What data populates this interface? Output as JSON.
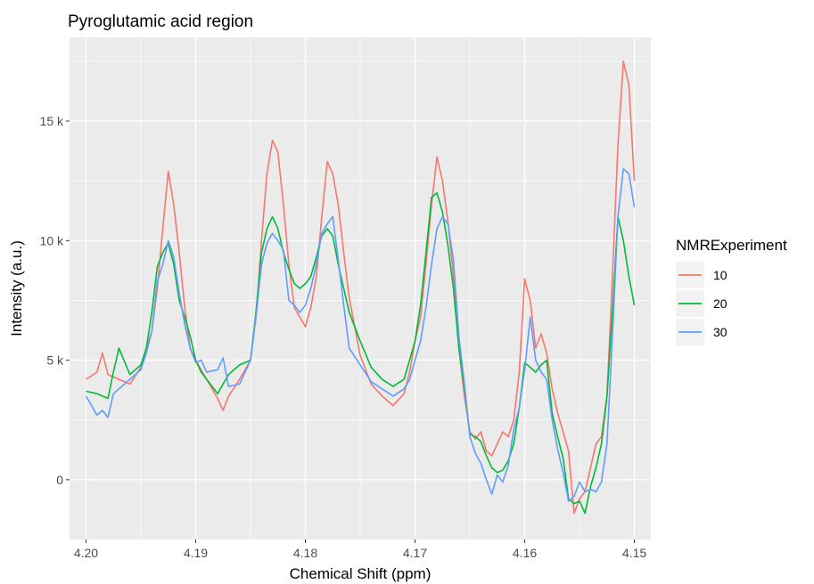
{
  "chart_data": {
    "type": "line",
    "title": "Pyroglutamic acid region",
    "xlabel": "Chemical Shift (ppm)",
    "ylabel": "Intensity (a.u.)",
    "x_reversed": true,
    "xlim": [
      4.2015,
      4.1485
    ],
    "ylim": [
      -2500,
      18500
    ],
    "x_ticks": [
      {
        "value": 4.2,
        "label": "4.20"
      },
      {
        "value": 4.19,
        "label": "4.19"
      },
      {
        "value": 4.18,
        "label": "4.18"
      },
      {
        "value": 4.17,
        "label": "4.17"
      },
      {
        "value": 4.16,
        "label": "4.16"
      },
      {
        "value": 4.15,
        "label": "4.15"
      }
    ],
    "y_ticks": [
      {
        "value": 0,
        "label": "0"
      },
      {
        "value": 5000,
        "label": "5 k"
      },
      {
        "value": 10000,
        "label": "10 k"
      },
      {
        "value": 15000,
        "label": "15 k"
      }
    ],
    "grid": true,
    "legend": {
      "title": "NMRExperiment",
      "position": "right"
    },
    "series": [
      {
        "name": "10",
        "color": "#F8766D",
        "x": [
          4.2,
          4.199,
          4.1985,
          4.198,
          4.1975,
          4.197,
          4.196,
          4.195,
          4.1945,
          4.194,
          4.1935,
          4.193,
          4.1925,
          4.192,
          4.1915,
          4.191,
          4.1905,
          4.19,
          4.1895,
          4.189,
          4.188,
          4.1875,
          4.187,
          4.186,
          4.185,
          4.1845,
          4.184,
          4.1835,
          4.183,
          4.1825,
          4.182,
          4.1815,
          4.181,
          4.1805,
          4.18,
          4.1795,
          4.179,
          4.1785,
          4.178,
          4.1775,
          4.177,
          4.1765,
          4.176,
          4.175,
          4.174,
          4.173,
          4.172,
          4.171,
          4.1705,
          4.17,
          4.1695,
          4.169,
          4.1685,
          4.168,
          4.1675,
          4.167,
          4.1665,
          4.166,
          4.1655,
          4.165,
          4.1645,
          4.164,
          4.1635,
          4.163,
          4.1625,
          4.162,
          4.1615,
          4.161,
          4.1605,
          4.16,
          4.1595,
          4.159,
          4.1585,
          4.158,
          4.1575,
          4.157,
          4.1565,
          4.156,
          4.1555,
          4.155,
          4.1545,
          4.154,
          4.1535,
          4.153,
          4.1525,
          4.152,
          4.1515,
          4.151,
          4.1505,
          4.15
        ],
        "y": [
          4200,
          4500,
          5300,
          4400,
          4300,
          4200,
          4000,
          4700,
          5500,
          6200,
          8000,
          10500,
          12900,
          11500,
          9500,
          7200,
          5500,
          5000,
          4600,
          4200,
          3400,
          2900,
          3500,
          4200,
          5000,
          6800,
          10000,
          12800,
          14200,
          13700,
          11500,
          9000,
          7200,
          6800,
          6400,
          7200,
          8500,
          11000,
          13300,
          12800,
          11500,
          9500,
          7600,
          5200,
          4000,
          3500,
          3100,
          3600,
          4500,
          5800,
          6800,
          9000,
          11500,
          13500,
          12500,
          10800,
          8500,
          5500,
          3500,
          2000,
          1700,
          2000,
          1200,
          1000,
          1500,
          2000,
          1800,
          2500,
          4500,
          8400,
          7500,
          5500,
          6100,
          5300,
          3800,
          2800,
          2000,
          1200,
          -1400,
          -800,
          -500,
          500,
          1500,
          1800,
          3500,
          8500,
          14000,
          17500,
          16500,
          12500
        ]
      },
      {
        "name": "20",
        "color": "#00BA38",
        "x": [
          4.2,
          4.199,
          4.1985,
          4.198,
          4.1975,
          4.197,
          4.196,
          4.195,
          4.1945,
          4.194,
          4.1935,
          4.193,
          4.1925,
          4.192,
          4.1915,
          4.191,
          4.1905,
          4.19,
          4.1895,
          4.189,
          4.188,
          4.1875,
          4.187,
          4.186,
          4.185,
          4.1845,
          4.184,
          4.1835,
          4.183,
          4.1825,
          4.182,
          4.1815,
          4.181,
          4.1805,
          4.18,
          4.1795,
          4.179,
          4.1785,
          4.178,
          4.1775,
          4.177,
          4.1765,
          4.176,
          4.175,
          4.174,
          4.173,
          4.172,
          4.171,
          4.1705,
          4.17,
          4.1695,
          4.169,
          4.1685,
          4.168,
          4.1675,
          4.167,
          4.1665,
          4.166,
          4.1655,
          4.165,
          4.1645,
          4.164,
          4.1635,
          4.163,
          4.1625,
          4.162,
          4.1615,
          4.161,
          4.1605,
          4.16,
          4.1595,
          4.159,
          4.1585,
          4.158,
          4.1575,
          4.157,
          4.1565,
          4.156,
          4.1555,
          4.155,
          4.1545,
          4.154,
          4.1535,
          4.153,
          4.1525,
          4.152,
          4.1515,
          4.151,
          4.1505,
          4.15
        ],
        "y": [
          3700,
          3600,
          3500,
          3400,
          4500,
          5500,
          4400,
          4800,
          5500,
          7000,
          8900,
          9500,
          9900,
          9000,
          7500,
          6800,
          6000,
          5000,
          4500,
          4200,
          3600,
          4000,
          4400,
          4800,
          5000,
          7000,
          9500,
          10500,
          11000,
          10500,
          9500,
          8800,
          8200,
          8000,
          8200,
          8500,
          9300,
          10200,
          10500,
          10200,
          9000,
          8000,
          7000,
          5800,
          4700,
          4200,
          3900,
          4200,
          5000,
          5800,
          7300,
          9500,
          11800,
          12000,
          11200,
          9800,
          8000,
          5500,
          3800,
          1900,
          1800,
          1600,
          1000,
          500,
          300,
          400,
          800,
          1500,
          3000,
          4900,
          4700,
          4500,
          4800,
          5000,
          2800,
          1800,
          900,
          -800,
          -1000,
          -900,
          -1400,
          -300,
          500,
          1500,
          3500,
          7000,
          11000,
          10000,
          8500,
          7300
        ]
      },
      {
        "name": "30",
        "color": "#619CFF",
        "x": [
          4.2,
          4.199,
          4.1985,
          4.198,
          4.1975,
          4.197,
          4.196,
          4.195,
          4.1945,
          4.194,
          4.1935,
          4.193,
          4.1925,
          4.192,
          4.1915,
          4.191,
          4.1905,
          4.19,
          4.1895,
          4.189,
          4.188,
          4.1875,
          4.187,
          4.186,
          4.185,
          4.1845,
          4.184,
          4.1835,
          4.183,
          4.1825,
          4.182,
          4.1815,
          4.181,
          4.1805,
          4.18,
          4.1795,
          4.179,
          4.1785,
          4.178,
          4.1775,
          4.177,
          4.1765,
          4.176,
          4.175,
          4.174,
          4.173,
          4.172,
          4.171,
          4.1705,
          4.17,
          4.1695,
          4.169,
          4.1685,
          4.168,
          4.1675,
          4.167,
          4.1665,
          4.166,
          4.1655,
          4.165,
          4.1645,
          4.164,
          4.1635,
          4.163,
          4.1625,
          4.162,
          4.1615,
          4.161,
          4.1605,
          4.16,
          4.1595,
          4.159,
          4.1585,
          4.158,
          4.1575,
          4.157,
          4.1565,
          4.156,
          4.1555,
          4.155,
          4.1545,
          4.154,
          4.1535,
          4.153,
          4.1525,
          4.152,
          4.1515,
          4.151,
          4.1505,
          4.15
        ],
        "y": [
          3500,
          2700,
          2900,
          2600,
          3600,
          3800,
          4200,
          4600,
          5300,
          6200,
          8300,
          9000,
          10000,
          9300,
          7800,
          6500,
          5500,
          4900,
          5000,
          4500,
          4600,
          5100,
          3900,
          4000,
          5000,
          6800,
          9000,
          9900,
          10300,
          10000,
          9600,
          7500,
          7300,
          7000,
          7300,
          8000,
          9000,
          10300,
          10700,
          11000,
          9200,
          7300,
          5500,
          4800,
          4100,
          3800,
          3500,
          3800,
          4200,
          5000,
          5800,
          7200,
          9000,
          10500,
          11000,
          10700,
          9200,
          6000,
          4000,
          1800,
          1100,
          700,
          0,
          -600,
          200,
          -100,
          600,
          2100,
          3000,
          4600,
          6800,
          5000,
          4500,
          4200,
          2500,
          1300,
          300,
          -900,
          -700,
          -100,
          -500,
          -400,
          -500,
          -100,
          1500,
          6000,
          11000,
          13000,
          12800,
          11400
        ]
      }
    ]
  }
}
